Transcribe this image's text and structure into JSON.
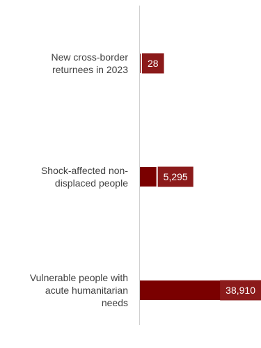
{
  "chart_data": {
    "type": "bar",
    "orientation": "horizontal",
    "categories": [
      [
        "New cross-border",
        "returnees in 2023"
      ],
      [
        "Shock-affected non-",
        "displaced people"
      ],
      [
        "Vulnerable people with",
        "acute humanitarian",
        "needs"
      ]
    ],
    "values": [
      28,
      5295,
      38910
    ],
    "value_labels": [
      "28",
      "5,295",
      "38,910"
    ],
    "xlim": [
      0,
      38910
    ],
    "grid": false,
    "legend": "none",
    "colors": {
      "bar": "#7a0000",
      "label_box": "#8b1a1a",
      "label_text": "#ffffff",
      "category_text": "#404040",
      "axis": "#d0d0d0"
    }
  }
}
